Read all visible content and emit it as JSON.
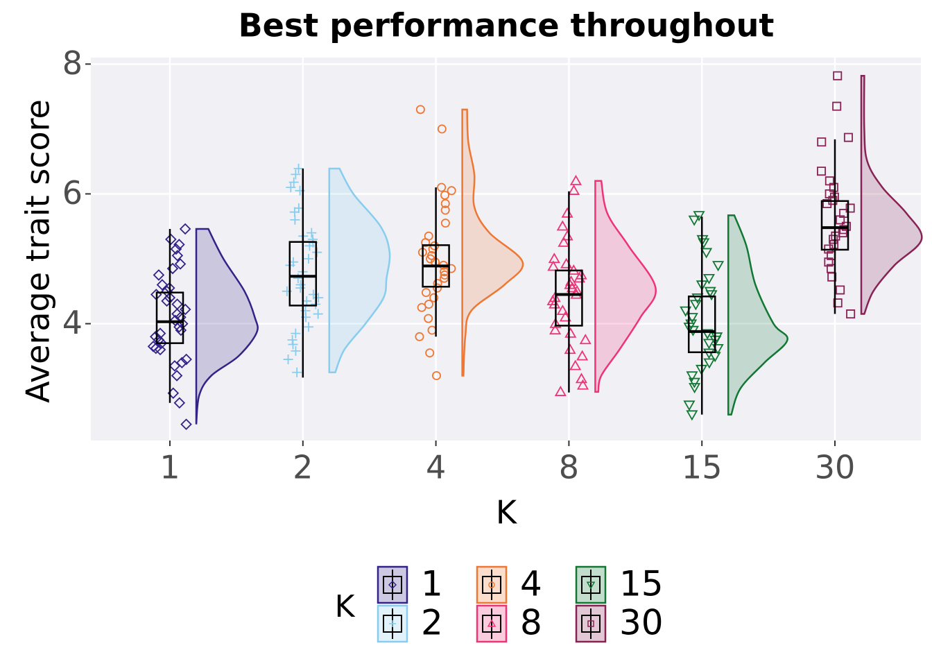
{
  "chart_data": {
    "type": "raincloud",
    "title": "Best performance throughout",
    "y_label": "Average trait score",
    "x_label": "K",
    "legend_title": "K",
    "ylim": [
      2.2,
      8.1
    ],
    "yticks": [
      4,
      6,
      8
    ],
    "grid": true,
    "categories": [
      "1",
      "2",
      "4",
      "8",
      "15",
      "30"
    ],
    "groups": [
      {
        "color": "#332288",
        "shape": "diamond",
        "box": {
          "whisker_low": 2.78,
          "q1": 3.7,
          "median": 4.03,
          "q3": 4.48,
          "whisker_high": 5.46
        },
        "points": [
          5.46,
          5.3,
          5.22,
          5.15,
          5.05,
          4.92,
          4.85,
          4.75,
          4.6,
          4.55,
          4.5,
          4.45,
          4.4,
          4.35,
          4.3,
          4.22,
          4.15,
          4.1,
          4.05,
          4.0,
          3.95,
          3.9,
          3.85,
          3.8,
          3.75,
          3.7,
          3.65,
          3.62,
          3.6,
          3.45,
          3.4,
          3.35,
          3.2,
          2.93,
          2.78,
          2.45
        ],
        "density": {
          "y": [
            5.46,
            5.0,
            4.5,
            4.1,
            3.86,
            3.5,
            3.2,
            2.9,
            2.45
          ],
          "w": [
            0.2,
            0.45,
            0.8,
            0.97,
            1.0,
            0.7,
            0.25,
            0.05,
            0.0
          ]
        }
      },
      {
        "color": "#88ccee",
        "shape": "plus",
        "box": {
          "whisker_low": 3.17,
          "q1": 4.28,
          "median": 4.73,
          "q3": 5.26,
          "whisker_high": 6.39
        },
        "points": [
          6.39,
          6.3,
          6.18,
          6.1,
          6.05,
          5.78,
          5.72,
          5.6,
          5.4,
          5.35,
          5.3,
          5.25,
          5.2,
          5.1,
          5.0,
          4.95,
          4.9,
          4.8,
          4.7,
          4.6,
          4.55,
          4.5,
          4.45,
          4.4,
          4.35,
          4.3,
          4.2,
          4.15,
          4.1,
          3.95,
          3.85,
          3.75,
          3.68,
          3.58,
          3.45,
          3.25
        ],
        "density": {
          "y": [
            6.39,
            6.0,
            5.5,
            5.1,
            4.7,
            4.4,
            4.0,
            3.6,
            3.25
          ],
          "w": [
            0.17,
            0.4,
            0.85,
            1.0,
            0.95,
            0.9,
            0.6,
            0.25,
            0.1
          ]
        }
      },
      {
        "color": "#ee7733",
        "shape": "circle",
        "box": {
          "whisker_low": 3.8,
          "q1": 4.57,
          "median": 4.89,
          "q3": 5.21,
          "whisker_high": 6.1
        },
        "points": [
          7.3,
          7.0,
          6.1,
          6.05,
          5.98,
          5.85,
          5.75,
          5.55,
          5.35,
          5.25,
          5.2,
          5.15,
          5.1,
          5.05,
          5.0,
          4.95,
          4.9,
          4.85,
          4.8,
          4.75,
          4.7,
          4.62,
          4.55,
          4.48,
          4.4,
          4.3,
          4.25,
          4.08,
          3.9,
          3.8,
          3.55,
          3.2
        ],
        "density": {
          "y": [
            7.3,
            6.8,
            6.3,
            5.8,
            5.4,
            4.95,
            4.6,
            4.2,
            3.8,
            3.2
          ],
          "w": [
            0.08,
            0.1,
            0.2,
            0.2,
            0.45,
            1.0,
            0.7,
            0.15,
            0.05,
            0.02
          ]
        }
      },
      {
        "color": "#ee3377",
        "shape": "triangle",
        "box": {
          "whisker_low": 2.94,
          "q1": 3.97,
          "median": 4.45,
          "q3": 4.82,
          "whisker_high": 6.04
        },
        "points": [
          6.2,
          6.05,
          5.7,
          5.5,
          5.35,
          5.25,
          5.0,
          4.92,
          4.88,
          4.82,
          4.75,
          4.7,
          4.65,
          4.6,
          4.55,
          4.5,
          4.45,
          4.4,
          4.35,
          4.3,
          4.2,
          4.1,
          4.0,
          3.9,
          3.85,
          3.75,
          3.6,
          3.5,
          3.35,
          3.15,
          3.05,
          2.95
        ],
        "density": {
          "y": [
            6.2,
            5.7,
            5.2,
            4.55,
            4.1,
            3.6,
            3.2,
            2.95
          ],
          "w": [
            0.1,
            0.2,
            0.55,
            1.0,
            0.75,
            0.4,
            0.1,
            0.05
          ]
        }
      },
      {
        "color": "#117733",
        "shape": "down-triangle",
        "box": {
          "whisker_low": 2.6,
          "q1": 3.56,
          "median": 3.88,
          "q3": 4.42,
          "whisker_high": 5.65
        },
        "points": [
          5.67,
          5.6,
          5.3,
          5.25,
          5.1,
          4.9,
          4.7,
          4.6,
          4.5,
          4.45,
          4.4,
          4.3,
          4.2,
          4.1,
          4.0,
          3.95,
          3.9,
          3.85,
          3.8,
          3.75,
          3.7,
          3.62,
          3.55,
          3.5,
          3.4,
          3.3,
          3.2,
          3.1,
          3.02,
          2.75,
          2.6
        ],
        "density": {
          "y": [
            5.67,
            5.2,
            4.6,
            4.0,
            3.75,
            3.4,
            3.0,
            2.6
          ],
          "w": [
            0.1,
            0.3,
            0.45,
            0.75,
            0.98,
            0.6,
            0.2,
            0.05
          ]
        }
      },
      {
        "color": "#882255",
        "shape": "square",
        "box": {
          "whisker_low": 4.15,
          "q1": 5.14,
          "median": 5.48,
          "q3": 5.89,
          "whisker_high": 6.84
        },
        "points": [
          7.82,
          7.35,
          6.87,
          6.8,
          6.35,
          6.2,
          6.1,
          6.0,
          5.95,
          5.9,
          5.85,
          5.78,
          5.7,
          5.6,
          5.5,
          5.45,
          5.4,
          5.35,
          5.3,
          5.22,
          5.15,
          5.05,
          4.95,
          4.85,
          4.72,
          4.52,
          4.32,
          4.15
        ],
        "density": {
          "y": [
            7.82,
            7.0,
            6.5,
            6.1,
            5.7,
            5.3,
            4.9,
            4.5,
            4.15
          ],
          "w": [
            0.05,
            0.05,
            0.1,
            0.35,
            0.75,
            1.0,
            0.55,
            0.2,
            0.05
          ]
        }
      }
    ]
  }
}
